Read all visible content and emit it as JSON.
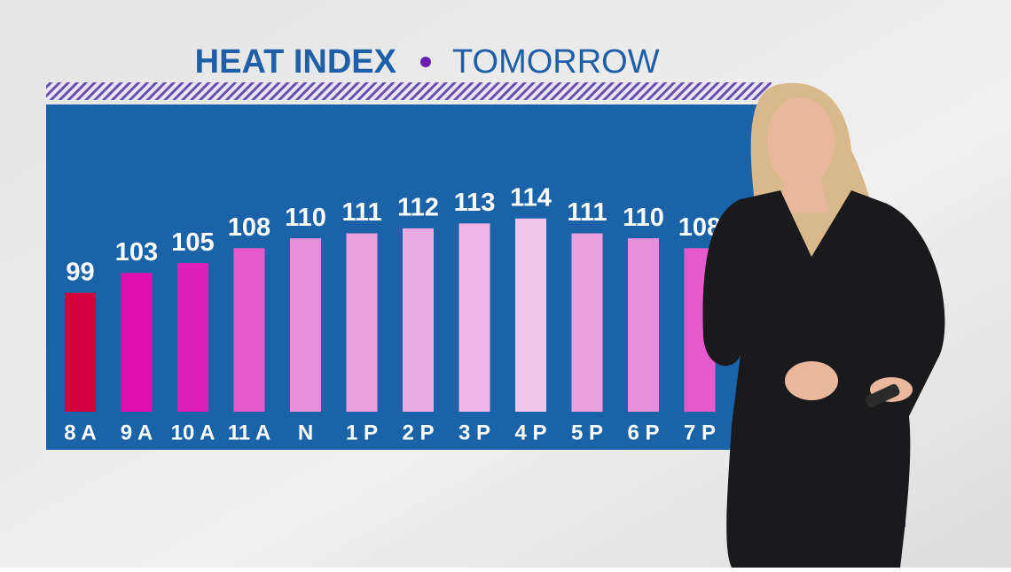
{
  "chart_data": {
    "type": "bar",
    "title": "HEAT INDEX",
    "subtitle": "TOMORROW",
    "categories": [
      "8 A",
      "9 A",
      "10 A",
      "11 A",
      "N",
      "1 P",
      "2 P",
      "3 P",
      "4 P",
      "5 P",
      "6 P",
      "7 P"
    ],
    "values": [
      99,
      103,
      105,
      108,
      110,
      111,
      112,
      113,
      114,
      111,
      110,
      108
    ],
    "colors": [
      "#d4003c",
      "#de0fae",
      "#e01fb6",
      "#e65acc",
      "#e88fdc",
      "#eaa0e0",
      "#ecaae3",
      "#efb6e7",
      "#f2c6ec",
      "#eaa0e0",
      "#e88fdc",
      "#e65acc"
    ],
    "ylim": [
      75,
      137
    ]
  }
}
